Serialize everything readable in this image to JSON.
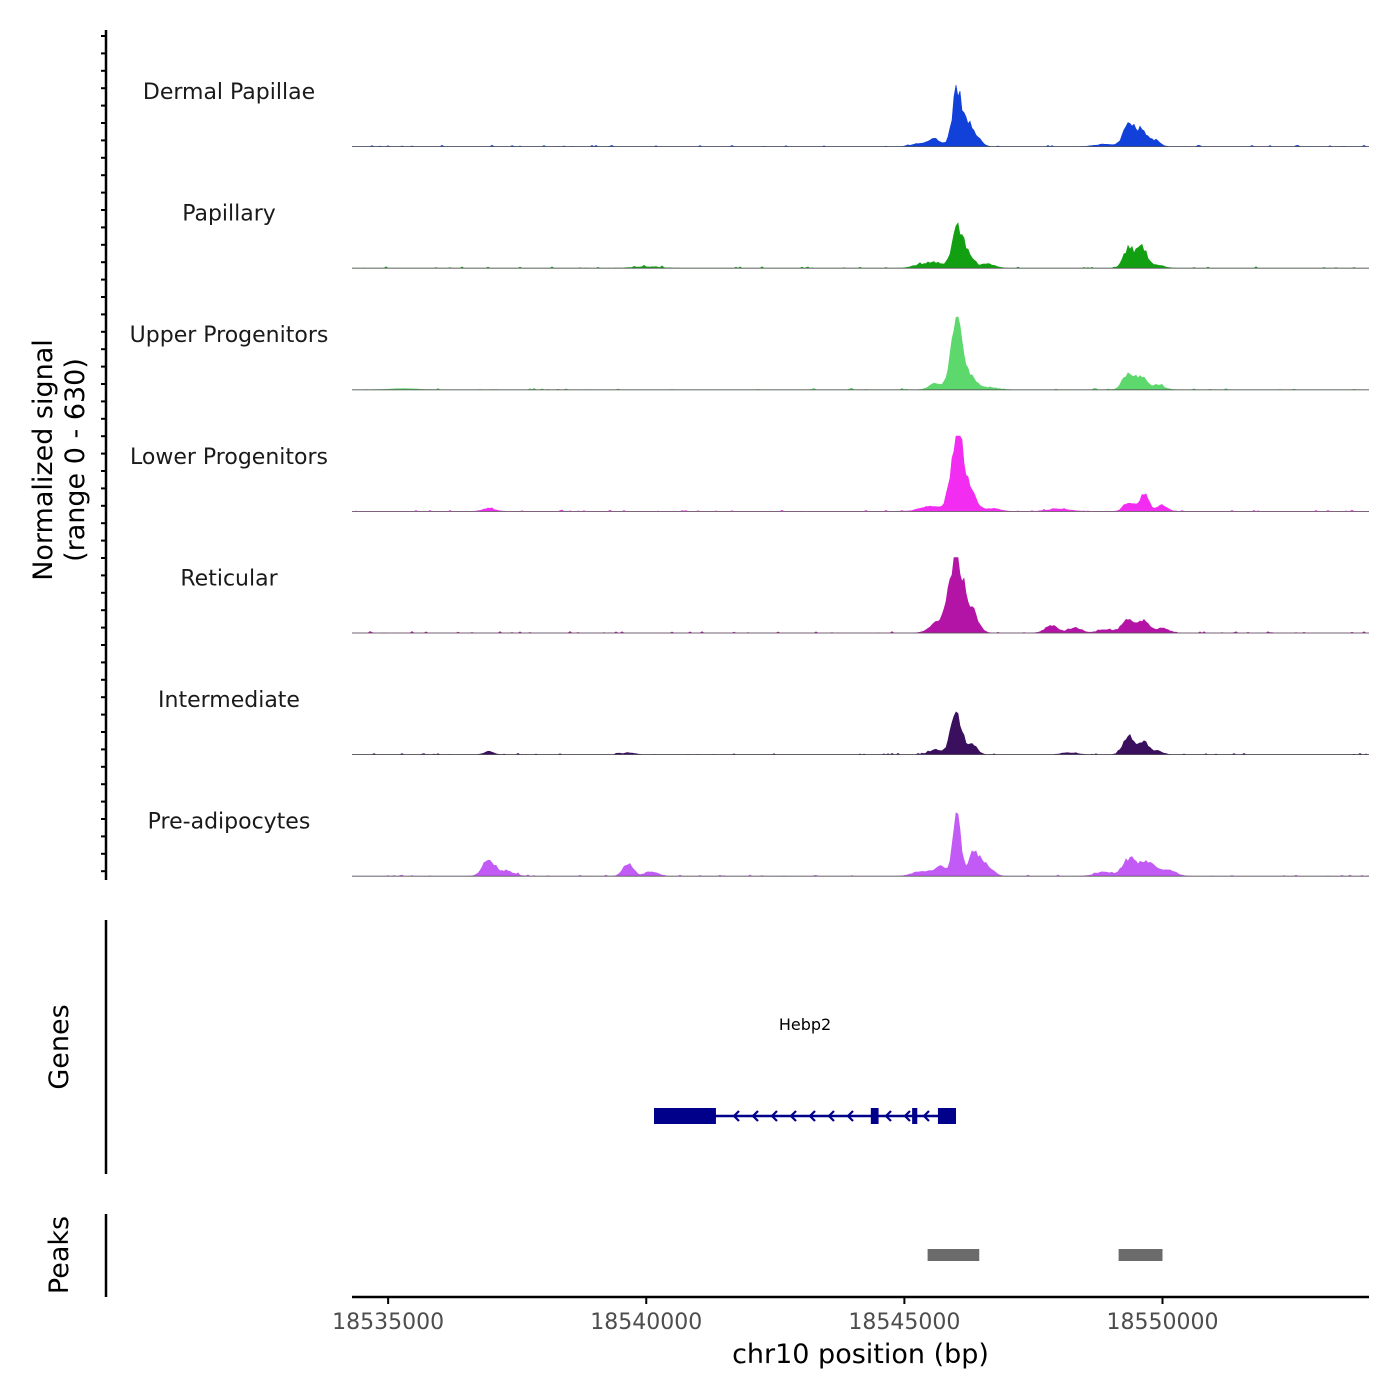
{
  "chart_data": {
    "type": "area",
    "title": "",
    "xlabel": "chr10 position (bp)",
    "coverage_ylabel": [
      "Normalized signal",
      "(range 0 - 630)"
    ],
    "ylim": [
      0,
      630
    ],
    "xlim": [
      18534300,
      18554000
    ],
    "x_ticks": [
      18535000,
      18540000,
      18545000,
      18550000
    ],
    "x_tick_labels": [
      "18535000",
      "18540000",
      "18545000",
      "18550000"
    ],
    "tracks": [
      {
        "name": "Dermal Papillae",
        "color": "#1241D9",
        "peaks": [
          [
            18546020,
            460,
            90
          ],
          [
            18546250,
            190,
            90
          ],
          [
            18549350,
            210,
            100
          ],
          [
            18549600,
            140,
            90
          ],
          [
            18545600,
            60,
            120
          ],
          [
            18545300,
            25,
            150
          ],
          [
            18546450,
            45,
            80
          ],
          [
            18549850,
            55,
            100
          ],
          [
            18548900,
            20,
            200
          ]
        ]
      },
      {
        "name": "Papillary",
        "color": "#12A012",
        "peaks": [
          [
            18546020,
            320,
            100
          ],
          [
            18546230,
            130,
            90
          ],
          [
            18549350,
            170,
            100
          ],
          [
            18549600,
            170,
            90
          ],
          [
            18545600,
            45,
            150
          ],
          [
            18545300,
            25,
            150
          ],
          [
            18546600,
            35,
            150
          ],
          [
            18549850,
            30,
            150
          ],
          [
            18540000,
            12,
            250
          ]
        ]
      },
      {
        "name": "Upper Progenitors",
        "color": "#5CD86C",
        "peaks": [
          [
            18546020,
            610,
            110
          ],
          [
            18546300,
            90,
            110
          ],
          [
            18549350,
            140,
            110
          ],
          [
            18549600,
            100,
            90
          ],
          [
            18549900,
            40,
            130
          ],
          [
            18545600,
            50,
            120
          ],
          [
            18546650,
            20,
            150
          ],
          [
            18535300,
            10,
            250
          ]
        ]
      },
      {
        "name": "Lower Progenitors",
        "color": "#F22CF0",
        "peaks": [
          [
            18546030,
            630,
            120
          ],
          [
            18546300,
            140,
            110
          ],
          [
            18549350,
            80,
            100
          ],
          [
            18549650,
            140,
            90
          ],
          [
            18550000,
            50,
            100
          ],
          [
            18545500,
            40,
            200
          ],
          [
            18546700,
            25,
            150
          ],
          [
            18548000,
            20,
            200
          ],
          [
            18536950,
            25,
            120
          ]
        ]
      },
      {
        "name": "Reticular",
        "color": "#B314A6",
        "peaks": [
          [
            18546000,
            640,
            130
          ],
          [
            18546300,
            180,
            120
          ],
          [
            18545650,
            90,
            150
          ],
          [
            18549350,
            110,
            120
          ],
          [
            18549650,
            100,
            100
          ],
          [
            18550000,
            40,
            120
          ],
          [
            18547850,
            65,
            120
          ],
          [
            18548300,
            45,
            120
          ],
          [
            18548900,
            30,
            150
          ]
        ]
      },
      {
        "name": "Intermediate",
        "color": "#3A0F5E",
        "peaks": [
          [
            18546000,
            370,
            100
          ],
          [
            18546300,
            90,
            100
          ],
          [
            18549350,
            150,
            110
          ],
          [
            18549650,
            100,
            90
          ],
          [
            18549900,
            30,
            100
          ],
          [
            18545600,
            40,
            120
          ],
          [
            18536950,
            25,
            90
          ],
          [
            18539650,
            15,
            120
          ],
          [
            18548200,
            15,
            150
          ]
        ]
      },
      {
        "name": "Pre-adipocytes",
        "color": "#C25AF5",
        "peaks": [
          [
            18546020,
            550,
            70
          ],
          [
            18546350,
            200,
            110
          ],
          [
            18546600,
            80,
            120
          ],
          [
            18545700,
            80,
            140
          ],
          [
            18545300,
            40,
            150
          ],
          [
            18549350,
            140,
            130
          ],
          [
            18549700,
            110,
            150
          ],
          [
            18550100,
            50,
            150
          ],
          [
            18536950,
            130,
            120
          ],
          [
            18537300,
            40,
            150
          ],
          [
            18539650,
            100,
            100
          ],
          [
            18540100,
            40,
            120
          ],
          [
            18548850,
            35,
            150
          ]
        ]
      }
    ],
    "genes_track_label": "Genes",
    "gene": {
      "name": "Hebp2",
      "strand": "-",
      "color": "#00008B",
      "start": 18540150,
      "end": 18546000,
      "exons": [
        [
          18540150,
          18541350
        ],
        [
          18544350,
          18544500
        ],
        [
          18545150,
          18545250
        ],
        [
          18545650,
          18546000
        ]
      ]
    },
    "peaks_track_label": "Peaks",
    "peak_regions": [
      [
        18545450,
        18546450
      ],
      [
        18549150,
        18550000
      ]
    ],
    "peak_color": "#6b6b6b"
  }
}
